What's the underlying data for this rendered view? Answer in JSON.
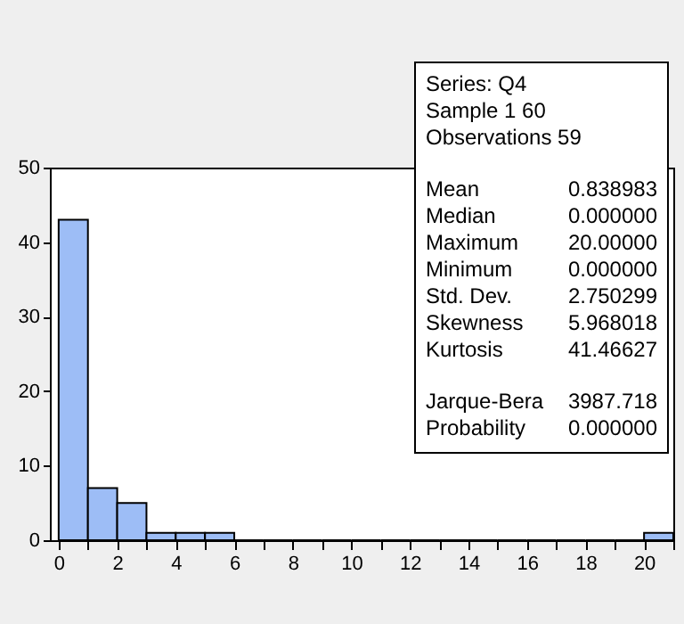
{
  "chart_data": {
    "type": "histogram",
    "bins": [
      0,
      1,
      2,
      3,
      4,
      5,
      6,
      7,
      8,
      9,
      10,
      11,
      12,
      13,
      14,
      15,
      16,
      17,
      18,
      19,
      20,
      21
    ],
    "values": [
      43,
      7,
      5,
      1,
      1,
      1,
      0,
      0,
      0,
      0,
      0,
      0,
      0,
      0,
      0,
      0,
      0,
      0,
      0,
      0,
      1
    ],
    "color": "#9dbdf6",
    "xlim": [
      -0.3,
      21
    ],
    "xticks": [
      0,
      {
        "value": 1,
        "label": null
      },
      2,
      {
        "value": 3,
        "label": null
      },
      4,
      {
        "value": 5,
        "label": null
      },
      6,
      {
        "value": 7,
        "label": null
      },
      8,
      {
        "value": 9,
        "label": null
      },
      10,
      {
        "value": 11,
        "label": null
      },
      12,
      {
        "value": 13,
        "label": null
      },
      14,
      {
        "value": 15,
        "label": null
      },
      16,
      {
        "value": 17,
        "label": null
      },
      18,
      {
        "value": 19,
        "label": null
      },
      20,
      {
        "value": 21,
        "label": null
      }
    ],
    "ylim": [
      0,
      50
    ],
    "yticks": [
      0,
      10,
      20,
      30,
      40,
      50
    ],
    "grid": false,
    "annotations": [
      "Series: Q4",
      "Sample 1 60",
      "Observations 59",
      "Mean 0.838983",
      "Median 0.000000",
      "Maximum 20.00000",
      "Minimum 0.000000",
      "Std. Dev. 2.750299",
      "Skewness 5.968018",
      "Kurtosis 41.46627",
      "Jarque-Bera 3987.718",
      "Probability 0.000000"
    ]
  }
}
